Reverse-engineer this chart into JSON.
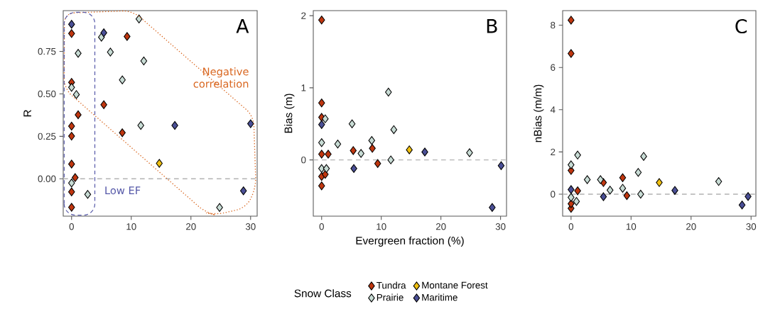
{
  "chart_data": [
    {
      "type": "scatter",
      "ylabel": "R",
      "marker": "diamond",
      "legend": false,
      "xlim": [
        -1.4,
        31.1
      ],
      "ylim": [
        -0.22,
        0.99
      ],
      "xticks": [
        0,
        10,
        20,
        30
      ],
      "yticks": [
        {
          "value": 0,
          "label": "0.00"
        },
        {
          "value": 0.25,
          "label": "0.25"
        },
        {
          "value": 0.5,
          "label": "0.50"
        },
        {
          "value": 0.75,
          "label": "0.75"
        }
      ],
      "ref_lines": [
        {
          "axis": "y",
          "value": 0,
          "color": "#b3b3b3",
          "line_style": "dashed"
        }
      ],
      "annotations": [
        "A",
        "Negative correlation",
        "Low EF"
      ],
      "series": [
        {
          "color": "#c0360f",
          "x": [
            0,
            9.3,
            0,
            5.4,
            1.1,
            0,
            0,
            8.5,
            0,
            0.6,
            0,
            0
          ],
          "values": [
            0.855,
            0.838,
            0.568,
            0.436,
            0.377,
            0.31,
            0.251,
            0.271,
            0.087,
            0.007,
            -0.077,
            -0.168
          ]
        },
        {
          "color": "#c8dcd5",
          "x": [
            11.3,
            5.0,
            1.1,
            6.5,
            12.1,
            8.5,
            0,
            0.8,
            11.6,
            0,
            2.7,
            24.8
          ],
          "values": [
            0.941,
            0.834,
            0.739,
            0.746,
            0.694,
            0.582,
            0.538,
            0.496,
            0.314,
            -0.025,
            -0.092,
            -0.169
          ]
        },
        {
          "color": "#f0c010",
          "x": [
            14.7
          ],
          "values": [
            0.091
          ]
        },
        {
          "color": "#4a4f96",
          "x": [
            0,
            5.4,
            17.3,
            30,
            28.8
          ],
          "values": [
            0.91,
            0.86,
            0.314,
            0.324,
            -0.071
          ]
        }
      ]
    },
    {
      "type": "scatter",
      "xlabel": "Evergreen fraction (%)",
      "ylabel": "Bias (m)",
      "marker": "diamond",
      "legend": "bottom",
      "legend_title": "Snow Class",
      "xlim": [
        -1.4,
        31.0
      ],
      "ylim": [
        -0.78,
        2.07
      ],
      "xticks": [
        0,
        10,
        20,
        30
      ],
      "yticks": [
        0,
        1,
        2
      ],
      "ref_lines": [
        {
          "axis": "y",
          "value": 0,
          "color": "#b3b3b3",
          "line_style": "dashed"
        }
      ],
      "annotations": [
        "B"
      ],
      "series": [
        {
          "name": "Tundra",
          "color": "#c0360f",
          "x": [
            0,
            0,
            0,
            0,
            1.1,
            5.3,
            8.5,
            9.4,
            0,
            0,
            0.6
          ],
          "values": [
            1.94,
            0.79,
            0.59,
            0.08,
            0.08,
            0.13,
            0.16,
            -0.05,
            -0.23,
            -0.36,
            -0.2
          ]
        },
        {
          "name": "Prairie",
          "color": "#c8dcd5",
          "x": [
            11.2,
            0.6,
            5.1,
            12.1,
            0,
            2.7,
            8.4,
            6.6,
            11.6,
            24.8,
            0,
            0.8
          ],
          "values": [
            0.94,
            0.57,
            0.5,
            0.42,
            0.24,
            0.22,
            0.27,
            0.09,
            0.0,
            0.1,
            -0.12,
            -0.12
          ]
        },
        {
          "name": "Montane Forest",
          "color": "#f0c010",
          "x": [
            14.7
          ],
          "values": [
            0.14
          ]
        },
        {
          "name": "Maritime",
          "color": "#4a4f96",
          "x": [
            0,
            5.4,
            17.3,
            30.1,
            28.6
          ],
          "values": [
            0.49,
            -0.12,
            0.11,
            -0.08,
            -0.66
          ]
        }
      ]
    },
    {
      "type": "scatter",
      "ylabel": "nBias (m/m)",
      "marker": "diamond",
      "legend": false,
      "xlim": [
        -1.4,
        30.8
      ],
      "ylim": [
        -1.04,
        8.69
      ],
      "xticks": [
        0,
        10,
        20,
        30
      ],
      "yticks": [
        0,
        2,
        4,
        6,
        8
      ],
      "ref_lines": [
        {
          "axis": "y",
          "value": 0,
          "color": "#b3b3b3",
          "line_style": "dashed"
        }
      ],
      "annotations": [
        "C"
      ],
      "series": [
        {
          "color": "#c0360f",
          "x": [
            0,
            0,
            0,
            5.4,
            8.6,
            9.3,
            1.1,
            0,
            0
          ],
          "values": [
            8.24,
            6.66,
            1.12,
            0.55,
            0.78,
            -0.07,
            0.16,
            -0.67,
            -0.45
          ]
        },
        {
          "color": "#c8dcd5",
          "x": [
            1.1,
            0,
            12.1,
            11.2,
            2.7,
            4.9,
            6.5,
            8.6,
            11.6,
            24.6,
            0.9,
            0
          ],
          "values": [
            1.85,
            1.39,
            1.79,
            1.03,
            0.69,
            0.69,
            0.19,
            0.28,
            0.0,
            0.6,
            -0.34,
            -0.15
          ]
        },
        {
          "color": "#f0c010",
          "x": [
            14.7
          ],
          "values": [
            0.55
          ]
        },
        {
          "color": "#4a4f96",
          "x": [
            0,
            5.4,
            17.3,
            29.5,
            28.5
          ],
          "values": [
            0.22,
            -0.12,
            0.18,
            -0.11,
            -0.51
          ]
        }
      ]
    }
  ]
}
